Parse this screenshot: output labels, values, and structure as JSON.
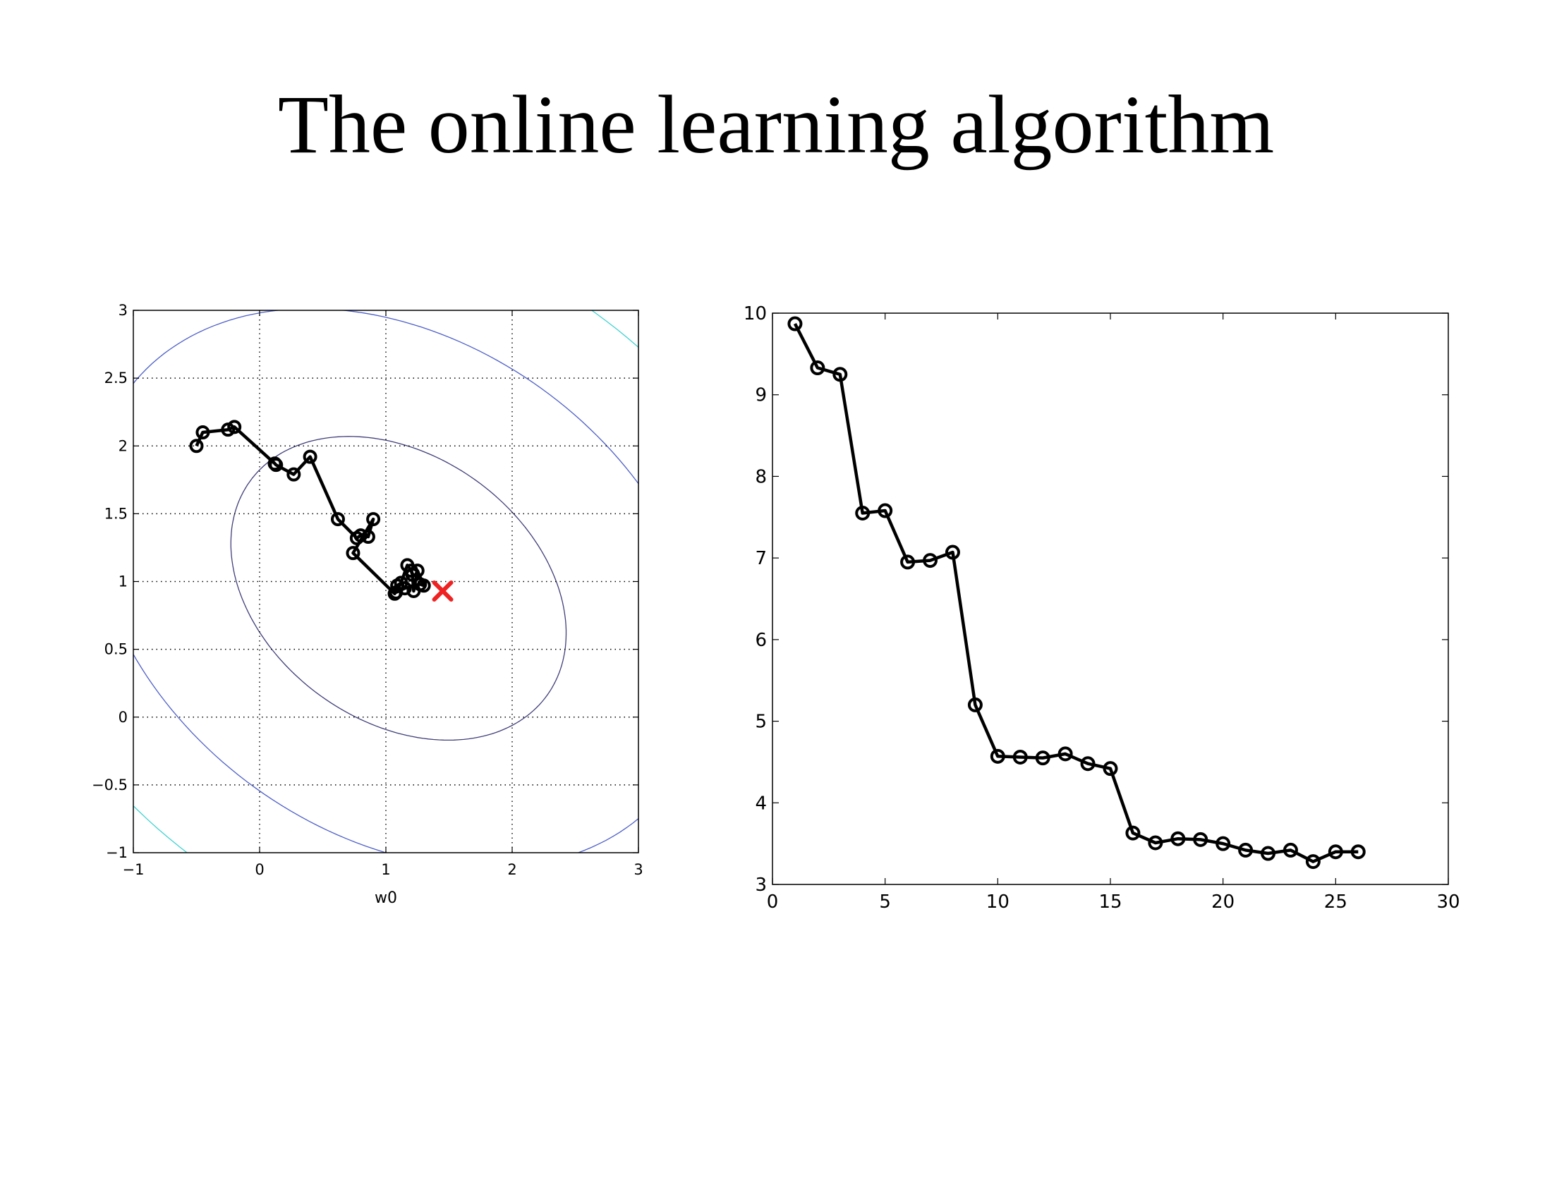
{
  "slide": {
    "title": "The online learning algorithm"
  },
  "colors": {
    "path": "#000000",
    "marker": "#000000",
    "optimum": "#ee2222",
    "contours": [
      "#3e3e7a",
      "#4d5fc9",
      "#40d2d2",
      "#f0e64a",
      "#e84040"
    ],
    "grid": "#000000"
  },
  "chart_data": [
    {
      "type": "line",
      "description_hidden": false,
      "title": "",
      "xlabel": "w0",
      "ylabel": "",
      "xlim": [
        -1,
        3
      ],
      "ylim": [
        -1,
        3
      ],
      "xticks": [
        -1,
        0,
        1,
        2,
        3
      ],
      "yticks": [
        -1,
        -0.5,
        0,
        0.5,
        1,
        1.5,
        2,
        2.5,
        3
      ],
      "xtick_labels": [
        "−1",
        "0",
        "1",
        "2",
        "3"
      ],
      "ytick_labels": [
        "−1",
        "−0.5",
        "0",
        "0.5",
        "1",
        "1.5",
        "2",
        "2.5",
        "3"
      ],
      "grid": "dotted",
      "background": "contour",
      "optimum": {
        "x": 1.45,
        "y": 0.93,
        "marker": "x"
      },
      "series": [
        {
          "marker": "o",
          "x": [
            -0.5,
            -0.45,
            -0.25,
            -0.2,
            0.12,
            0.13,
            0.27,
            0.4,
            0.62,
            0.77,
            0.8,
            0.86,
            0.9,
            0.74,
            1.07,
            1.09,
            1.12,
            1.17,
            1.2,
            1.21,
            1.22,
            1.25,
            1.3,
            1.27,
            1.15,
            1.08
          ],
          "y": [
            2.0,
            2.1,
            2.12,
            2.14,
            1.87,
            1.86,
            1.79,
            1.92,
            1.46,
            1.32,
            1.34,
            1.33,
            1.46,
            1.21,
            0.91,
            0.97,
            0.99,
            1.12,
            1.08,
            1.05,
            0.93,
            1.08,
            0.97,
            0.98,
            0.95,
            0.92
          ]
        }
      ]
    },
    {
      "type": "line",
      "title": "",
      "xlabel": "",
      "ylabel": "",
      "xlim": [
        0,
        30
      ],
      "ylim": [
        3,
        10
      ],
      "xticks": [
        0,
        5,
        10,
        15,
        20,
        25,
        30
      ],
      "yticks": [
        3,
        4,
        5,
        6,
        7,
        8,
        9,
        10
      ],
      "xtick_labels": [
        "0",
        "5",
        "10",
        "15",
        "20",
        "25",
        "30"
      ],
      "ytick_labels": [
        "3",
        "4",
        "5",
        "6",
        "7",
        "8",
        "9",
        "10"
      ],
      "grid": "off",
      "series": [
        {
          "marker": "o",
          "x": [
            1,
            2,
            3,
            4,
            5,
            6,
            7,
            8,
            9,
            10,
            11,
            12,
            13,
            14,
            15,
            16,
            17,
            18,
            19,
            20,
            21,
            22,
            23,
            24,
            25,
            26
          ],
          "y": [
            9.87,
            9.33,
            9.25,
            7.55,
            7.58,
            6.95,
            6.97,
            7.07,
            5.2,
            4.57,
            4.56,
            4.55,
            4.6,
            4.48,
            4.42,
            3.63,
            3.51,
            3.56,
            3.55,
            3.5,
            3.42,
            3.38,
            3.42,
            3.28,
            3.4,
            3.4
          ]
        }
      ]
    }
  ]
}
